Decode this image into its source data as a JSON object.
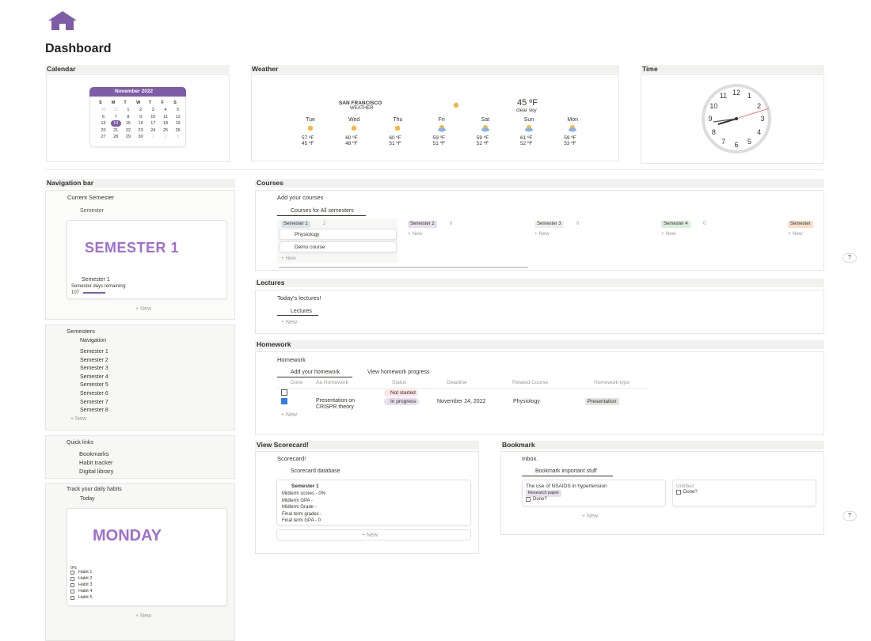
{
  "header": {
    "title": "Dashboard"
  },
  "calendar": {
    "heading": "Calendar",
    "month": "November 2022",
    "weekdays": [
      "S",
      "M",
      "T",
      "W",
      "T",
      "F",
      "S"
    ],
    "weeks": [
      [
        30,
        31,
        1,
        2,
        3,
        4,
        5
      ],
      [
        6,
        7,
        8,
        9,
        10,
        11,
        12
      ],
      [
        13,
        14,
        15,
        16,
        17,
        18,
        19
      ],
      [
        20,
        21,
        22,
        23,
        24,
        25,
        26
      ],
      [
        27,
        28,
        29,
        30,
        1,
        2,
        3
      ]
    ],
    "selected": 14
  },
  "weather": {
    "heading": "Weather",
    "city": "SAN FRANCISCO",
    "label": "WEATHER",
    "temp": "45 ºF",
    "condition": "clear sky",
    "days": [
      {
        "name": "Tue",
        "high": "57 ºF",
        "low": "45 ºF"
      },
      {
        "name": "Wed",
        "high": "60 ºF",
        "low": "48 ºF"
      },
      {
        "name": "Thu",
        "high": "60 ºF",
        "low": "51 ºF"
      },
      {
        "name": "Fri",
        "high": "59 ºF",
        "low": "51 ºF"
      },
      {
        "name": "Sat",
        "high": "59 ºF",
        "low": "52 ºF"
      },
      {
        "name": "Sun",
        "high": "61 ºF",
        "low": "52 ºF"
      },
      {
        "name": "Mon",
        "high": "59 ºF",
        "low": "53 ºF"
      }
    ]
  },
  "time": {
    "heading": "Time",
    "numerals": [
      12,
      1,
      2,
      3,
      4,
      5,
      6,
      7,
      8,
      9,
      10,
      11
    ]
  },
  "navigation": {
    "heading": "Navigation bar",
    "title": "Current Semester",
    "view": "Semester",
    "banner": "SEMESTER 1",
    "item": "Semester 1",
    "remaining_label": "Semester days remaining:",
    "remaining": "107",
    "new": "+ New"
  },
  "semesters": {
    "title": "Semesters",
    "view": "Navigation",
    "items": [
      "Semester 1",
      "Semester 2",
      "Semester 3",
      "Semester 4",
      "Semester 5",
      "Semester 6",
      "Semester 7",
      "Semester 8"
    ],
    "new": "+ New"
  },
  "quick_links": {
    "title": "Quick links",
    "items": [
      "Bookmarks",
      "Habit tracker",
      "Digital library"
    ]
  },
  "habits": {
    "title": "Track your daily habits",
    "view": "Today",
    "banner": "MONDAY",
    "progress": "0%",
    "items": [
      "Habit 1",
      "Habit 2",
      "Habit 3",
      "Habit 4",
      "Habit 5"
    ],
    "new": "+ New"
  },
  "courses": {
    "heading": "Courses",
    "title": "Add your courses",
    "view": "Courses for All semesters",
    "columns": [
      {
        "name": "Semester 1",
        "count": 2,
        "cards": [
          "Physiology",
          "Demo course"
        ]
      },
      {
        "name": "Semester 2",
        "count": 0,
        "cards": []
      },
      {
        "name": "Semester 3",
        "count": 0,
        "cards": []
      },
      {
        "name": "Semester 4",
        "count": 0,
        "cards": []
      },
      {
        "name": "Semester",
        "count": null,
        "cards": []
      }
    ],
    "new": "+ New"
  },
  "lectures": {
    "heading": "Lectures",
    "title": "Today's lectures!",
    "view": "Lectures",
    "new": "+ New"
  },
  "homework": {
    "heading": "Homework",
    "title": "Homework",
    "tabs": [
      "Add your homework",
      "View homework progress"
    ],
    "columns": [
      "Done",
      "Aa Homework",
      "Status",
      "Deadline",
      "Related Course",
      "Homework type"
    ],
    "rows": [
      {
        "done": false,
        "name": "",
        "status": "Not started",
        "deadline": "",
        "course": "",
        "type": ""
      },
      {
        "done": true,
        "name": "Presentation on CRISPR theory",
        "status": "In progress",
        "deadline": "November 24, 2022",
        "course": "Physiology",
        "type": "Presentation"
      }
    ],
    "new": "+ New"
  },
  "scorecard": {
    "heading": "View Scorecard!",
    "title": "Scorecard!",
    "view": "Scorecard database",
    "card": "Semester 1",
    "lines": [
      "Midterm scores - 0%",
      "Midterm GPA -",
      "Midterm Grade -",
      "Final term grades -",
      "Final term GPA - 0"
    ],
    "new": "+ New"
  },
  "bookmark": {
    "heading": "Bookmark",
    "title": "Inbox.",
    "view": "Bookmark important stuff",
    "cards": [
      {
        "title": "The use of NSAIDS in hypertension",
        "tag": "Research paper",
        "check": "Done?"
      },
      {
        "title": "Untitled",
        "tag": "",
        "check": "Done?"
      }
    ],
    "new": "+ New"
  },
  "help": "?"
}
